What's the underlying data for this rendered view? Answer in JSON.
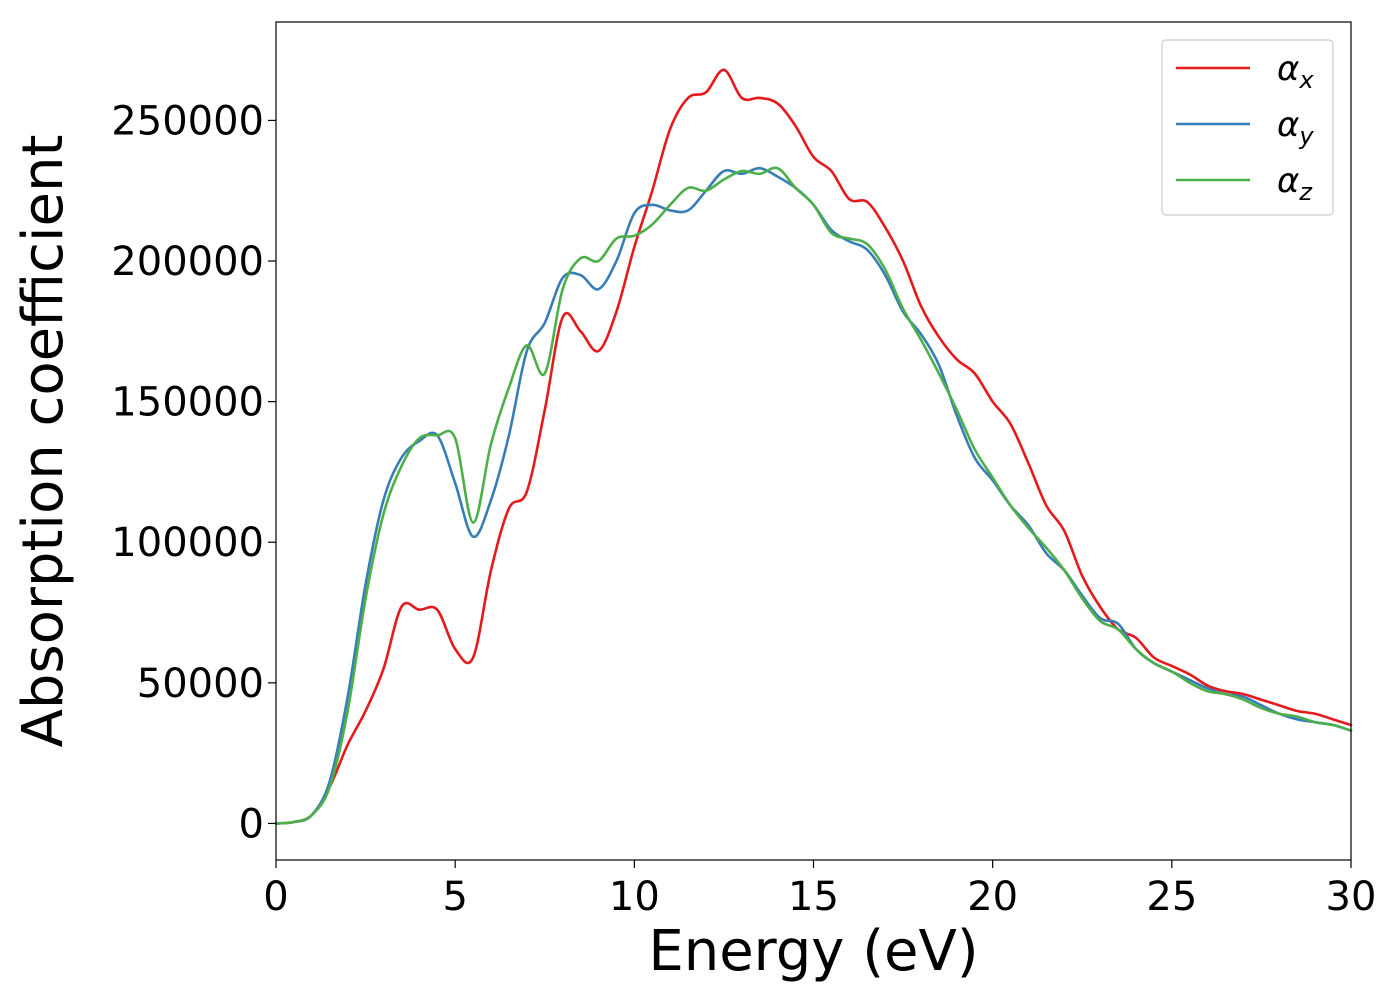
{
  "chart_data": {
    "type": "line",
    "title": "",
    "xlabel": "Energy (eV)",
    "ylabel": "Absorption coefficient",
    "xlim": [
      0,
      30
    ],
    "ylim": [
      -13000,
      285000
    ],
    "xticks": [
      0,
      5,
      10,
      15,
      20,
      25,
      30
    ],
    "yticks": [
      0,
      50000,
      100000,
      150000,
      200000,
      250000
    ],
    "grid": false,
    "legend_position": "top-right",
    "x": [
      0,
      0.5,
      1,
      1.5,
      2,
      2.5,
      3,
      3.5,
      4,
      4.5,
      5,
      5.5,
      6,
      6.5,
      7,
      7.5,
      8,
      8.5,
      9,
      9.5,
      10,
      10.5,
      11,
      11.5,
      12,
      12.5,
      13,
      13.5,
      14,
      14.5,
      15,
      15.5,
      16,
      16.5,
      17,
      17.5,
      18,
      18.5,
      19,
      19.5,
      20,
      20.5,
      21,
      21.5,
      22,
      22.5,
      23,
      23.5,
      24,
      24.5,
      25,
      25.5,
      26,
      26.5,
      27,
      27.5,
      28,
      28.5,
      29,
      29.5,
      30
    ],
    "series": [
      {
        "name": "α_x",
        "label_base": "α",
        "label_sub": "x",
        "color": "#e41a1c",
        "values": [
          0,
          500,
          3000,
          13000,
          28000,
          40000,
          55000,
          77000,
          76000,
          76000,
          62000,
          59000,
          90000,
          112000,
          118000,
          147000,
          180000,
          175000,
          168000,
          182000,
          205000,
          225000,
          247000,
          258000,
          260000,
          268000,
          258000,
          258000,
          256000,
          248000,
          237000,
          232000,
          222000,
          221000,
          212000,
          200000,
          184000,
          173000,
          165000,
          160000,
          150000,
          142000,
          128000,
          113000,
          104000,
          88000,
          77000,
          69000,
          66000,
          59000,
          56000,
          53000,
          49000,
          47000,
          46000,
          44000,
          42000,
          40000,
          39000,
          37000,
          35000
        ]
      },
      {
        "name": "α_y",
        "label_base": "α",
        "label_sub": "y",
        "color": "#377eb8",
        "values": [
          0,
          500,
          3000,
          15000,
          45000,
          85000,
          115000,
          130000,
          136000,
          138000,
          121000,
          102000,
          115000,
          138000,
          168000,
          178000,
          194000,
          195000,
          190000,
          200000,
          217000,
          220000,
          218000,
          218000,
          225000,
          232000,
          231000,
          233000,
          230000,
          226000,
          220000,
          211000,
          207000,
          204000,
          195000,
          182000,
          174000,
          163000,
          145000,
          130000,
          122000,
          113000,
          106000,
          96000,
          90000,
          81000,
          73000,
          71000,
          62000,
          57000,
          54000,
          51000,
          48000,
          46000,
          45000,
          42000,
          39000,
          37000,
          36000,
          35000,
          33000
        ]
      },
      {
        "name": "α_z",
        "label_base": "α",
        "label_sub": "z",
        "color": "#4daf4a",
        "values": [
          0,
          500,
          3000,
          13000,
          40000,
          80000,
          110000,
          127000,
          137000,
          138000,
          137000,
          107000,
          135000,
          155000,
          170000,
          160000,
          190000,
          201000,
          200000,
          208000,
          209000,
          213000,
          220000,
          226000,
          225000,
          229000,
          232000,
          231000,
          233000,
          226000,
          220000,
          210000,
          208000,
          206000,
          197000,
          183000,
          172000,
          160000,
          147000,
          133000,
          123000,
          113000,
          105000,
          98000,
          90000,
          80000,
          72000,
          69000,
          62000,
          57000,
          54000,
          50000,
          47000,
          46000,
          44000,
          41000,
          39000,
          38000,
          36000,
          35000,
          33000
        ]
      }
    ]
  }
}
